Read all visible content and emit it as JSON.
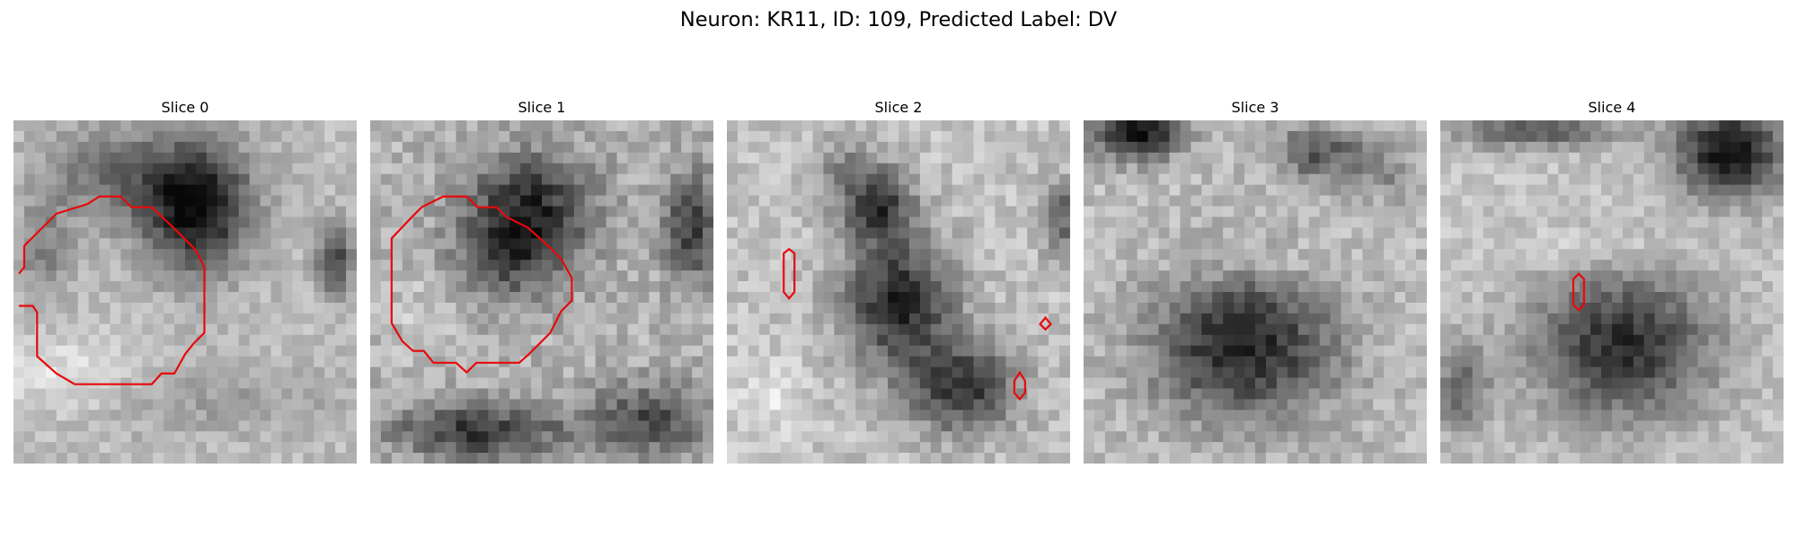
{
  "figure": {
    "title": "Neuron: KR11, ID: 109, Predicted Label: DV",
    "contour_color": "#e8090b"
  },
  "panels": [
    {
      "title": "Slice 0"
    },
    {
      "title": "Slice 1"
    },
    {
      "title": "Slice 2"
    },
    {
      "title": "Slice 3"
    },
    {
      "title": "Slice 4"
    }
  ]
}
